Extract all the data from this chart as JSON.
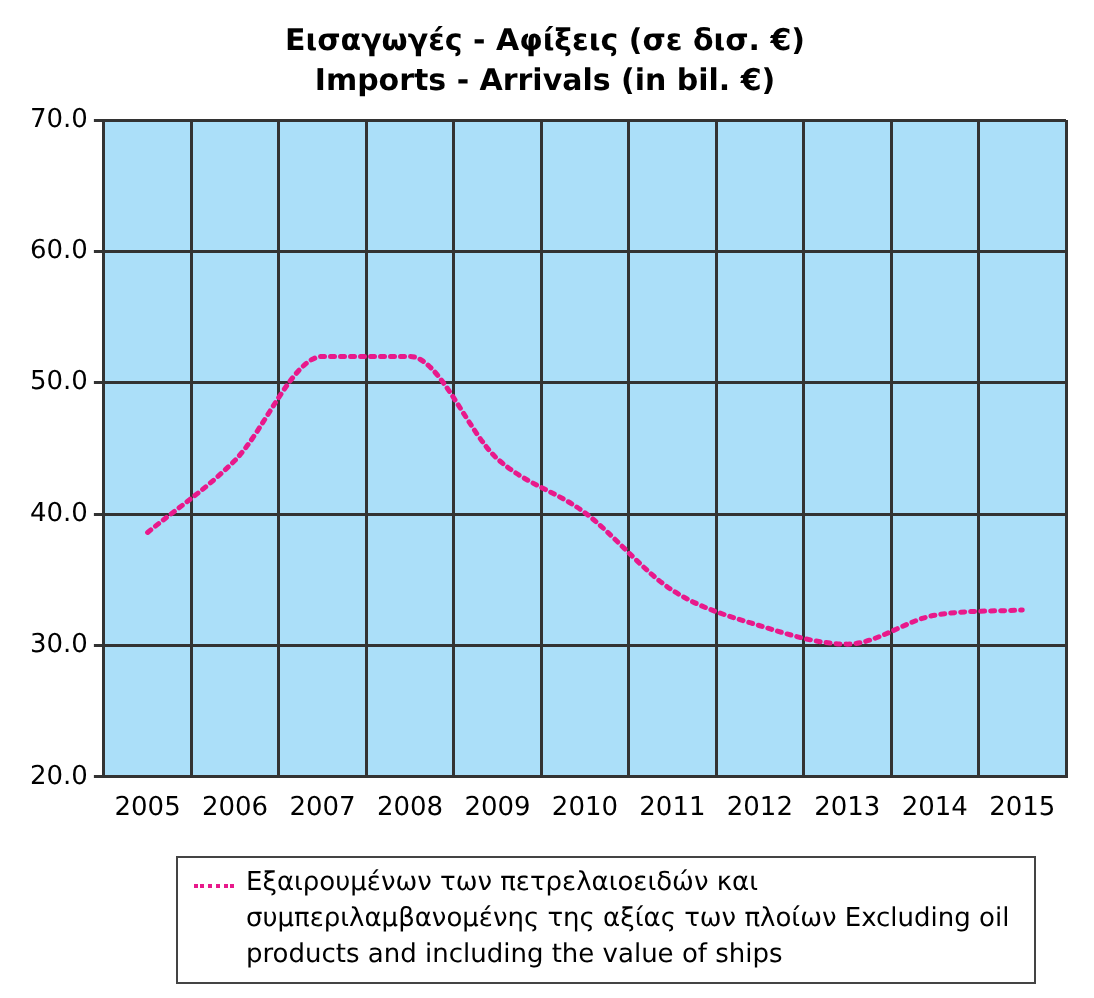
{
  "chart_data": {
    "type": "line",
    "title": "Εισαγωγές - Αφίξεις (σε δισ. €)",
    "subtitle": "Imports - Arrivals (in bil. €)",
    "categories": [
      "2005",
      "2006",
      "2007",
      "2008",
      "2009",
      "2010",
      "2011",
      "2012",
      "2013",
      "2014",
      "2015"
    ],
    "series": [
      {
        "name": "Εξαιρουμένων των πετρελαιοειδών και συμπεριλαμβανομένης της αξίας των πλοίων Excluding oil products and including the value of ships",
        "color": "#e8198b",
        "values": [
          38.6,
          44.1,
          52.0,
          52.0,
          44.2,
          40.1,
          34.2,
          31.5,
          30.1,
          32.3,
          32.7
        ]
      }
    ],
    "ylim": [
      20,
      70
    ],
    "yticks": [
      {
        "value": 20,
        "label": "20.0"
      },
      {
        "value": 30,
        "label": "30.0"
      },
      {
        "value": 40,
        "label": "40.0"
      },
      {
        "value": 50,
        "label": "50.0"
      },
      {
        "value": 60,
        "label": "60.0"
      },
      {
        "value": 70,
        "label": "70.0"
      }
    ],
    "grid": true,
    "legend": "bottom",
    "marker": "none",
    "line_style": "dotted"
  }
}
